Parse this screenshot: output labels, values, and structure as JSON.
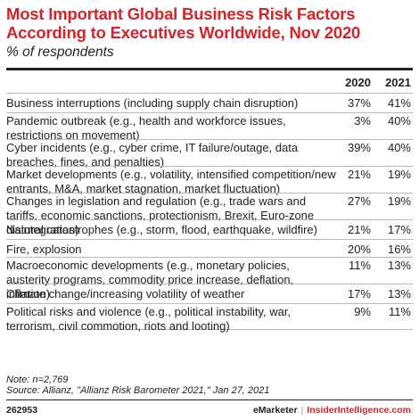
{
  "header": {
    "title": "Most Important Global Business Risk Factors According to Executives Worldwide, Nov 2020",
    "subtitle": "% of respondents"
  },
  "chart_data": {
    "type": "table",
    "columns": [
      "2020",
      "2021"
    ],
    "rows": [
      {
        "label": "Business interruptions (including supply chain disruption)",
        "v2020": "37%",
        "v2021": "41%"
      },
      {
        "label": "Pandemic outbreak (e.g., health and workforce issues, restrictions on movement)",
        "v2020": "3%",
        "v2021": "40%"
      },
      {
        "label": "Cyber incidents (e.g., cyber crime, IT failure/outage, data breaches, fines, and penalties)",
        "v2020": "39%",
        "v2021": "40%"
      },
      {
        "label": "Market developments (e.g., volatility, intensified competition/new entrants, M&A, market stagnation, market fluctuation)",
        "v2020": "21%",
        "v2021": "19%"
      },
      {
        "label": "Changes in legislation and regulation (e.g., trade wars and tariffs, economic sanctions, protectionism, Brexit, Euro-zone disintegration)",
        "v2020": "27%",
        "v2021": "19%"
      },
      {
        "label": "Natural catastrophes (e.g., storm, flood, earthquake, wildfire)",
        "v2020": "21%",
        "v2021": "17%"
      },
      {
        "label": "Fire, explosion",
        "v2020": "20%",
        "v2021": "16%"
      },
      {
        "label": "Macroeconomic developments (e.g., monetary policies, austerity programs, commodity price increase, deflation, inflation)",
        "v2020": "11%",
        "v2021": "13%"
      },
      {
        "label": "Climate change/increasing volatility of weather",
        "v2020": "17%",
        "v2021": "13%"
      },
      {
        "label": "Political risks and violence (e.g., political instability, war, terrorism, civil commotion, riots and looting)",
        "v2020": "9%",
        "v2021": "11%"
      }
    ]
  },
  "notes": {
    "note": "Note: n=2,769",
    "source": "Source: Allianz, \"Allianz Risk Barometer 2021,\" Jan 27, 2021"
  },
  "footer": {
    "chart_id": "262953",
    "brand_left": "eMarketer",
    "separator": "|",
    "brand_right": "InsiderIntelligence.com"
  },
  "colors": {
    "accent": "#d8232a",
    "text": "#222222",
    "rule": "#b9b9b9"
  }
}
